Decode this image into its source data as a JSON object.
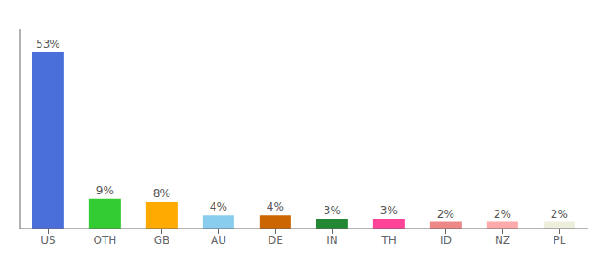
{
  "chart_data": {
    "type": "bar",
    "categories": [
      "US",
      "OTH",
      "GB",
      "AU",
      "DE",
      "IN",
      "TH",
      "ID",
      "NZ",
      "PL"
    ],
    "values": [
      53,
      9,
      8,
      4,
      4,
      3,
      3,
      2,
      2,
      2
    ],
    "value_labels": [
      "53%",
      "9%",
      "8%",
      "4%",
      "4%",
      "3%",
      "3%",
      "2%",
      "2%",
      "2%"
    ],
    "data_labels": true,
    "colors": [
      "#4a6fdb",
      "#33cc33",
      "#ffaa00",
      "#88ccee",
      "#cc6600",
      "#228833",
      "#ff4499",
      "#ee8888",
      "#ffaaaa",
      "#eeeedd"
    ],
    "ylim": [
      0,
      60
    ],
    "grid": false,
    "tick_labels": "x"
  }
}
